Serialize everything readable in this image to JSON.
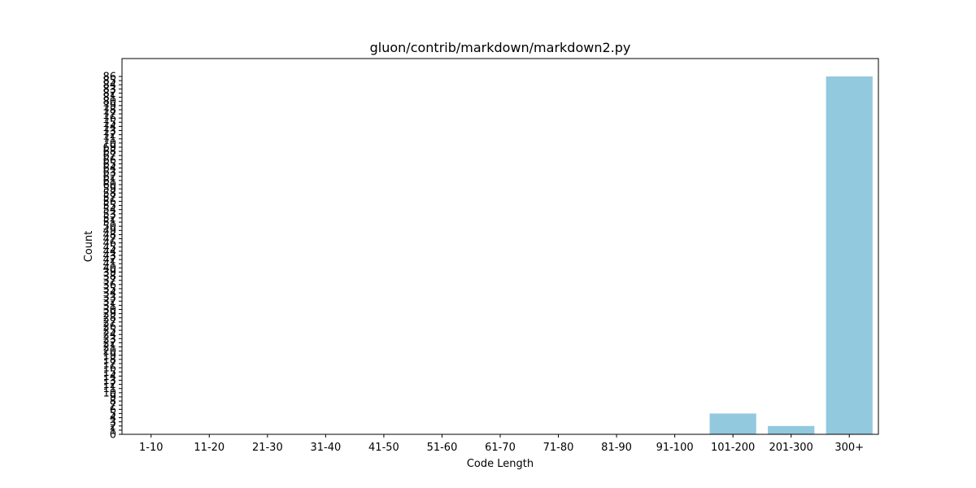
{
  "chart_data": {
    "type": "bar",
    "title": "gluon/contrib/markdown/markdown2.py",
    "xlabel": "Code Length",
    "ylabel": "Count",
    "categories": [
      "1-10",
      "11-20",
      "21-30",
      "31-40",
      "41-50",
      "51-60",
      "61-70",
      "71-80",
      "81-90",
      "91-100",
      "101-200",
      "201-300",
      "300+"
    ],
    "values": [
      0,
      0,
      0,
      0,
      0,
      0,
      0,
      0,
      0,
      0,
      5,
      2,
      86
    ],
    "ylim": [
      0,
      86
    ],
    "yticks": [
      0,
      1,
      2,
      3,
      4,
      5,
      6,
      7,
      8,
      9,
      10,
      11,
      12,
      13,
      14,
      15,
      16,
      17,
      18,
      19,
      20,
      21,
      22,
      23,
      24,
      25,
      26,
      27,
      28,
      29,
      30,
      31,
      32,
      33,
      34,
      35,
      36,
      37,
      38,
      39,
      40,
      41,
      42,
      43,
      44,
      45,
      46,
      47,
      48,
      49,
      50,
      51,
      52,
      53,
      54,
      55,
      56,
      57,
      58,
      59,
      60,
      61,
      62,
      63,
      64,
      65,
      66,
      67,
      68,
      69,
      70,
      71,
      72,
      73,
      74,
      75,
      76,
      77,
      78,
      79,
      80,
      81,
      82,
      83,
      84,
      85,
      86
    ],
    "bar_color": "#92c9df",
    "grid": false,
    "legend": "none"
  }
}
